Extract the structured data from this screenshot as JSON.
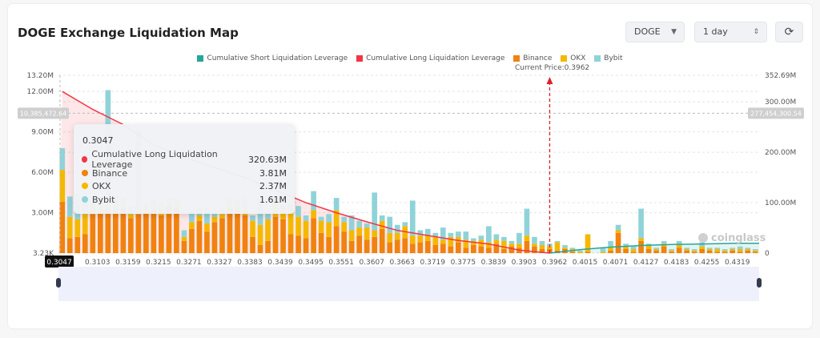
{
  "header": {
    "title": "DOGE Exchange Liquidation Map",
    "coin_select": "DOGE",
    "range_select": "1 day",
    "refresh_icon": "refresh-icon"
  },
  "legend": [
    {
      "label": "Cumulative Short Liquidation Leverage",
      "color": "#26a69a"
    },
    {
      "label": "Cumulative Long Liquidation Leverage",
      "color": "#f23645"
    },
    {
      "label": "Binance",
      "color": "#f0820f"
    },
    {
      "label": "OKX",
      "color": "#f5b800"
    },
    {
      "label": "Bybit",
      "color": "#8fd3d9"
    }
  ],
  "current_price_label": "Current Price:0.3962",
  "crosshair": {
    "left_value": "10,385,472.64",
    "right_value": "277,454,300.54",
    "x_value": "0.3047"
  },
  "tooltip": {
    "title": "0.3047",
    "rows": [
      {
        "label": "Cumulative Long Liquidation Leverage",
        "value": "320.63M",
        "color": "#f23645"
      },
      {
        "label": "Binance",
        "value": "3.81M",
        "color": "#f0820f"
      },
      {
        "label": "OKX",
        "value": "2.37M",
        "color": "#f5b800"
      },
      {
        "label": "Bybit",
        "value": "1.61M",
        "color": "#8fd3d9"
      }
    ]
  },
  "watermark": "coinglass",
  "chart_data": {
    "type": "bar",
    "stacked": true,
    "x_tick_labels": [
      "0.3047",
      "0.3103",
      "0.3159",
      "0.3215",
      "0.3271",
      "0.3327",
      "0.3383",
      "0.3439",
      "0.3495",
      "0.3551",
      "0.3607",
      "0.3663",
      "0.3719",
      "0.3775",
      "0.3839",
      "0.3903",
      "0.3962",
      "0.4015",
      "0.4071",
      "0.4127",
      "0.4183",
      "0.4255",
      "0.4319"
    ],
    "left_axis": {
      "ticks": [
        "3.23K",
        "3.00M",
        "6.00M",
        "9.00M",
        "12.00M",
        "13.20M"
      ],
      "tick_values": [
        0.00323,
        3,
        6,
        9,
        12,
        13.2
      ],
      "range": [
        0.00323,
        13.2
      ],
      "unit": "M"
    },
    "right_axis": {
      "ticks": [
        "0",
        "100.00M",
        "200.00M",
        "300.00M",
        "352.69M"
      ],
      "tick_values": [
        0,
        100,
        200,
        300,
        352.69
      ],
      "range": [
        0,
        352.69
      ],
      "unit": "M"
    },
    "current_price": "0.3962",
    "series": [
      {
        "name": "Binance",
        "axis": "left",
        "values": [
          3.81,
          1.1,
          1.2,
          1.4,
          2.9,
          3.0,
          3.2,
          3.1,
          3.3,
          2.6,
          2.9,
          3.0,
          3.2,
          2.8,
          3.5,
          3.4,
          0.9,
          1.8,
          2.4,
          1.6,
          2.3,
          2.6,
          3.4,
          3.2,
          2.8,
          1.2,
          0.6,
          0.9,
          2.7,
          2.5,
          1.4,
          1.3,
          1.1,
          2.6,
          1.5,
          1.2,
          2.0,
          1.6,
          0.9,
          1.3,
          1.0,
          1.2,
          1.8,
          0.8,
          1.0,
          1.1,
          0.7,
          0.8,
          0.9,
          0.6,
          0.7,
          0.5,
          0.8,
          0.4,
          0.6,
          0.5,
          0.4,
          0.7,
          0.3,
          0.5,
          0.4,
          0.9,
          0.5,
          0.3,
          0.3,
          0.2,
          0.3,
          0.1,
          0.0,
          0.1,
          0.0,
          0.0,
          0.2,
          1.5,
          0.3,
          0.1,
          0.9,
          0.3,
          0.2,
          0.5,
          0.1,
          0.4,
          0.2,
          0.1,
          0.3,
          0.2,
          0.1,
          0.1,
          0.2,
          0.1,
          0.2,
          0.1
        ]
      },
      {
        "name": "OKX",
        "axis": "left",
        "values": [
          2.37,
          1.6,
          1.3,
          1.5,
          0.6,
          0.5,
          0.4,
          0.6,
          0.5,
          0.3,
          0.4,
          0.5,
          0.4,
          0.6,
          0.3,
          0.4,
          0.3,
          0.5,
          0.4,
          0.6,
          0.4,
          0.3,
          0.5,
          0.4,
          0.7,
          1.2,
          1.5,
          1.6,
          1.2,
          0.8,
          1.6,
          1.4,
          1.3,
          0.6,
          0.9,
          1.1,
          1.2,
          0.7,
          0.8,
          0.6,
          0.9,
          0.5,
          0.6,
          0.7,
          0.5,
          0.9,
          0.6,
          0.5,
          0.4,
          0.6,
          0.3,
          0.7,
          0.4,
          0.6,
          0.3,
          0.5,
          0.4,
          0.3,
          0.6,
          0.2,
          0.3,
          0.4,
          0.2,
          0.3,
          0.2,
          0.6,
          0.1,
          0.2,
          0.1,
          1.3,
          0.0,
          0.1,
          0.3,
          0.2,
          0.2,
          0.2,
          0.2,
          0.3,
          0.1,
          0.2,
          0.1,
          0.2,
          0.1,
          0.1,
          0.2,
          0.1,
          0.2,
          0.1,
          0.1,
          0.2,
          0.1,
          0.1
        ]
      },
      {
        "name": "Bybit",
        "axis": "left",
        "values": [
          1.61,
          1.5,
          1.9,
          0.9,
          0.4,
          0.3,
          8.5,
          0.5,
          0.3,
          0.6,
          5.8,
          0.2,
          0.4,
          0.3,
          0.3,
          0.2,
          0.5,
          0.8,
          0.6,
          1.1,
          0.3,
          0.4,
          0.2,
          0.3,
          0.6,
          0.4,
          1.9,
          0.5,
          0.2,
          0.3,
          0.6,
          0.8,
          0.4,
          1.4,
          0.3,
          0.6,
          0.9,
          0.4,
          1.1,
          0.5,
          0.3,
          2.8,
          0.4,
          1.2,
          0.6,
          0.3,
          2.6,
          0.4,
          0.5,
          0.3,
          0.9,
          0.3,
          0.4,
          0.6,
          0.2,
          0.3,
          1.2,
          0.4,
          0.3,
          0.2,
          0.8,
          2.0,
          0.5,
          0.3,
          0.2,
          0.1,
          0.2,
          0.1,
          0.1,
          0.0,
          0.0,
          0.3,
          0.4,
          0.4,
          0.2,
          0.2,
          2.2,
          0.1,
          0.1,
          0.2,
          0.1,
          0.3,
          0.1,
          0.1,
          0.3,
          0.1,
          0.1,
          0.1,
          0.1,
          0.2,
          0.1,
          0.1
        ]
      },
      {
        "name": "Cumulative Long Liquidation Leverage",
        "axis": "right",
        "type": "line",
        "x": [
          "0.3047",
          "0.3103",
          "0.3159",
          "0.3215",
          "0.3271",
          "0.3327",
          "0.3383",
          "0.3439",
          "0.3495",
          "0.3551",
          "0.3607",
          "0.3663",
          "0.3719",
          "0.3775",
          "0.3839",
          "0.3903",
          "0.3962"
        ],
        "values": [
          320.63,
          285,
          255,
          215,
          190,
          170,
          150,
          125,
          100,
          80,
          62,
          45,
          35,
          25,
          18,
          6,
          0
        ]
      },
      {
        "name": "Cumulative Short Liquidation Leverage",
        "axis": "right",
        "type": "line",
        "x": [
          "0.3962",
          "0.4015",
          "0.4071",
          "0.4127",
          "0.4183",
          "0.4255",
          "0.4319"
        ],
        "values": [
          0,
          7,
          12,
          15,
          17,
          18,
          19.5
        ]
      }
    ]
  }
}
